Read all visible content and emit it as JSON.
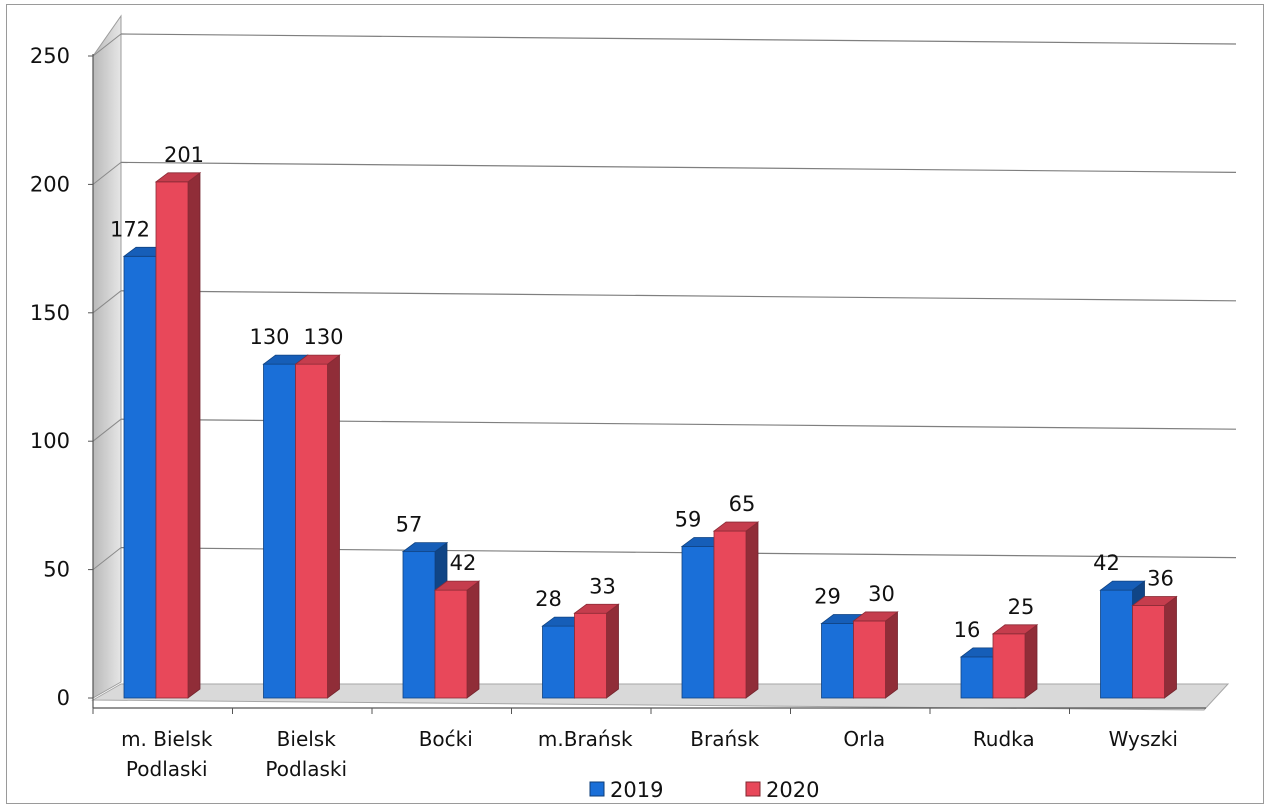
{
  "chart_data": {
    "type": "bar",
    "categories": [
      [
        "m. Bielsk",
        "Podlaski"
      ],
      [
        "Bielsk",
        "Podlaski"
      ],
      [
        "Boćki"
      ],
      [
        "m.Brańsk"
      ],
      [
        "Brańsk"
      ],
      [
        "Orla"
      ],
      [
        "Rudka"
      ],
      [
        "Wyszki"
      ]
    ],
    "series": [
      {
        "name": "2019",
        "values": [
          172,
          130,
          57,
          28,
          59,
          29,
          16,
          42
        ],
        "color": "#1a6fd8"
      },
      {
        "name": "2020",
        "values": [
          201,
          130,
          42,
          33,
          65,
          30,
          25,
          36
        ],
        "color": "#e8485a"
      }
    ],
    "y_ticks": [
      "0",
      "50",
      "100",
      "150",
      "200",
      "250"
    ],
    "ylim": [
      0,
      250
    ],
    "grid": true,
    "legend_position": "bottom"
  }
}
